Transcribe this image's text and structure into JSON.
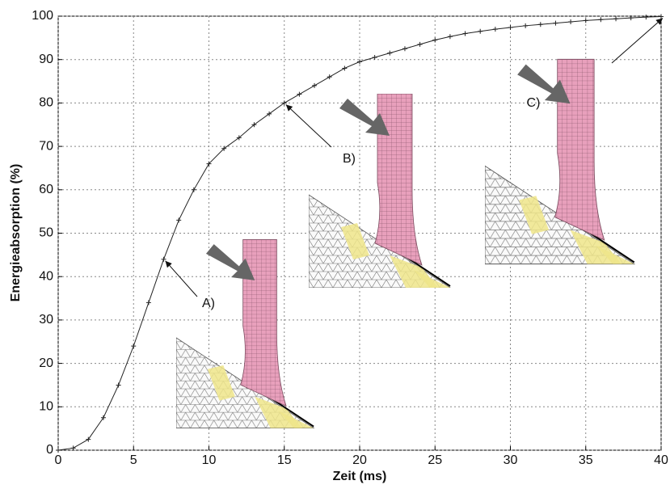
{
  "chart_data": {
    "type": "line",
    "xlabel": "Zeit (ms)",
    "ylabel": "Energieabsorption (%)",
    "x": [
      0,
      1,
      2,
      3,
      4,
      5,
      6,
      7,
      8,
      9,
      10,
      11,
      12,
      13,
      14,
      15,
      16,
      17,
      18,
      19,
      20,
      21,
      22,
      23,
      24,
      25,
      26,
      27,
      28,
      29,
      30,
      31,
      32,
      33,
      34,
      35,
      36,
      37,
      38,
      39,
      40
    ],
    "series": [
      {
        "color": "#222222",
        "values": [
          0,
          0.5,
          2.5,
          7.5,
          15,
          24,
          34,
          44,
          53,
          60,
          66,
          69.5,
          72,
          75,
          77.5,
          80,
          82,
          84,
          86,
          88,
          89.5,
          90.5,
          91.5,
          92.5,
          93.5,
          94.5,
          95.3,
          96,
          96.5,
          97,
          97.4,
          97.8,
          98.1,
          98.4,
          98.7,
          99,
          99.2,
          99.4,
          99.6,
          99.8,
          99.9
        ]
      }
    ],
    "xlim": [
      0,
      40
    ],
    "xticks": [
      0,
      5,
      10,
      15,
      20,
      25,
      30,
      35,
      40
    ],
    "ylim": [
      0,
      100
    ],
    "yticks": [
      0,
      10,
      20,
      30,
      40,
      50,
      60,
      70,
      80,
      90,
      100
    ],
    "grid": true,
    "annotations": [
      "A)",
      "B)",
      "C)"
    ]
  }
}
